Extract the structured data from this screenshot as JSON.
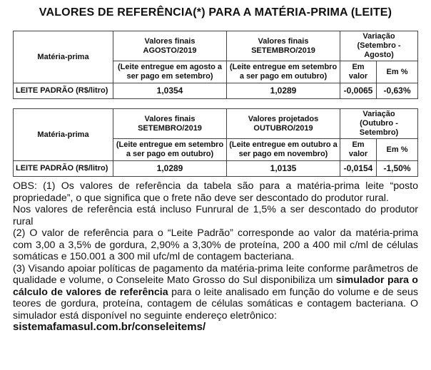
{
  "title": "VALORES DE REFERÊNCIA(*) PARA A MATÉRIA-PRIMA (LEITE)",
  "tables": [
    {
      "material_header": "Matéria-prima",
      "col1": {
        "line1": "Valores finais",
        "line2": "AGOSTO/2019",
        "note": "(Leite entregue em agosto a ser pago em setembro)"
      },
      "col2": {
        "line1": "Valores finais",
        "line2": "SETEMBRO/2019",
        "note": "(Leite entregue em setembro a ser pago em outubro)"
      },
      "variation": {
        "title": "Variação",
        "period": "(Setembro - Agosto)",
        "abs": "Em valor",
        "pct": "Em %"
      },
      "row": [
        "LEITE PADRÃO (R$/litro)",
        "1,0354",
        "1,0289",
        "-0,0065",
        "-0,63%"
      ]
    },
    {
      "material_header": "Matéria-prima",
      "col1": {
        "line1": "Valores finais",
        "line2": "SETEMBRO/2019",
        "note": "(Leite entregue em setembro a ser pago em outubro)"
      },
      "col2": {
        "line1": "Valores projetados",
        "line2": "OUTUBRO/2019",
        "note": "(Leite entregue em outubro a ser pago em novembro)"
      },
      "variation": {
        "title": "Variação",
        "period": "(Outubro - Setembro)",
        "abs": "Em valor",
        "pct": "Em %"
      },
      "row": [
        "LEITE PADRÃO (R$/litro)",
        "1,0289",
        "1,0135",
        "-0,0154",
        "-1,50%"
      ]
    }
  ],
  "obs": {
    "p1": "OBS: (1) Os valores de referência da tabela são para a matéria-prima leite “posto propriedade”, o que significa que o frete não deve ser descontado do produtor rural.",
    "p1b": "Nos valores de referência está incluso Funrural de 1,5% a ser descontado do produtor rural",
    "p2": "(2) O valor de referência para o “Leite Padrão” corresponde ao valor da matéria-prima com 3,00 a 3,5% de gordura, 2,90% a 3,30% de proteína, 200 a 400 mil c/ml de células somáticas e 150.001 a 300 mil ufc/ml de contagem bacteriana.",
    "p3a": "(3) Visando apoiar políticas de pagamento da matéria-prima leite conforme parâmetros de qualidade e volume, o Conseleite Mato Grosso do Sul disponibiliza um",
    "p3bold": "simulador para o cálculo de valores de referência",
    "p3b": "para o leite analisado em função do volume e de seus teores de gordura, proteína, contagem de células somáticas e contagem bacteriana. O simulador está disponível no seguinte endereço eletrônico:",
    "link": "sistemafamasul.com.br/conseleitems/"
  }
}
